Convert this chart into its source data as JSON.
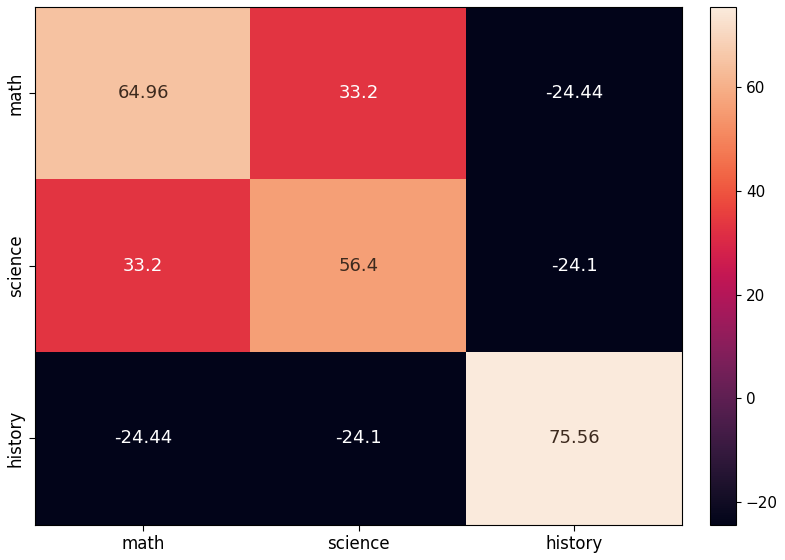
{
  "labels": [
    "math",
    "science",
    "history"
  ],
  "matrix": [
    [
      64.96,
      33.2,
      -24.44
    ],
    [
      33.2,
      56.4,
      -24.1
    ],
    [
      -24.44,
      -24.1,
      75.56
    ]
  ],
  "vmin": -24.44,
  "vmax": 75.56,
  "cbar_ticks": [
    -20,
    0,
    20,
    40,
    60
  ],
  "figsize": [
    7.85,
    5.6
  ],
  "dpi": 100,
  "font_size": 13,
  "tick_font_size": 12,
  "cbar_font_size": 11
}
